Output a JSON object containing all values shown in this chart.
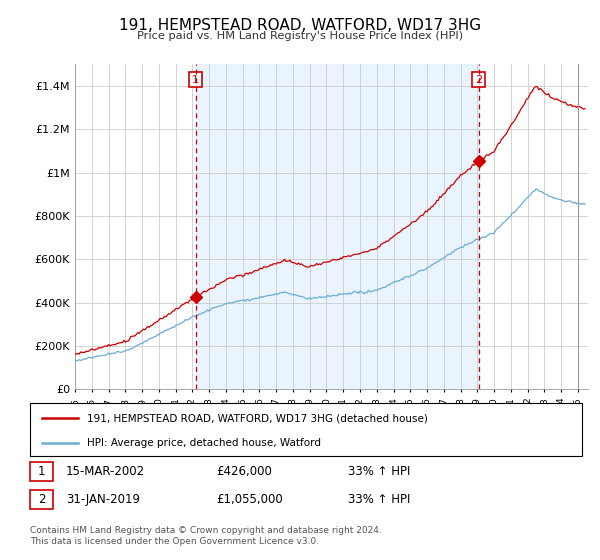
{
  "title": "191, HEMPSTEAD ROAD, WATFORD, WD17 3HG",
  "subtitle": "Price paid vs. HM Land Registry's House Price Index (HPI)",
  "legend_line1": "191, HEMPSTEAD ROAD, WATFORD, WD17 3HG (detached house)",
  "legend_line2": "HPI: Average price, detached house, Watford",
  "transaction1_date": "15-MAR-2002",
  "transaction1_price": 426000,
  "transaction1_hpi": "33% ↑ HPI",
  "transaction2_date": "31-JAN-2019",
  "transaction2_price": 1055000,
  "transaction2_hpi": "33% ↑ HPI",
  "footer": "Contains HM Land Registry data © Crown copyright and database right 2024.\nThis data is licensed under the Open Government Licence v3.0.",
  "hpi_color": "#6baed6",
  "price_color": "#cc0000",
  "vline_color": "#cc0000",
  "background_color": "#ffffff",
  "grid_color": "#cccccc",
  "hatch_color": "#aaaaaa",
  "fill_color": "#ddeeff",
  "ylim_max": 1500000,
  "ylim_min": 0,
  "t1_x": 2002.2,
  "t2_x": 2019.08,
  "xmin": 1995,
  "xmax": 2025.5
}
